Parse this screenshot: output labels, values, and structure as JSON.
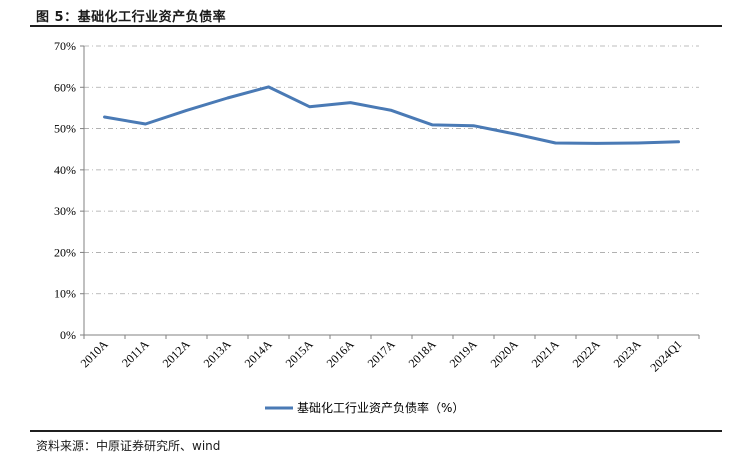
{
  "figure": {
    "title": "图 5：基础化工行业资产负债率",
    "source": "资料来源：中原证券研究所、wind"
  },
  "chart_data": {
    "type": "line",
    "title": "",
    "xlabel": "",
    "ylabel": "",
    "categories": [
      "2010A",
      "2011A",
      "2012A",
      "2013A",
      "2014A",
      "2015A",
      "2016A",
      "2017A",
      "2018A",
      "2019A",
      "2020A",
      "2021A",
      "2022A",
      "2023A",
      "2024Q1"
    ],
    "series": [
      {
        "name": "基础化工行业资产负债率（%）",
        "color": "#4a7ab5",
        "values": [
          52.8,
          51.1,
          54.4,
          57.4,
          60.1,
          55.3,
          56.3,
          54.4,
          50.9,
          50.7,
          48.7,
          46.5,
          46.4,
          46.5,
          46.8
        ]
      }
    ],
    "ylim": [
      0,
      70
    ],
    "yticks": [
      0,
      10,
      20,
      30,
      40,
      50,
      60,
      70
    ],
    "ytick_labels": [
      "0%",
      "10%",
      "20%",
      "30%",
      "40%",
      "50%",
      "60%",
      "70%"
    ],
    "grid": true,
    "legend_position": "bottom"
  }
}
